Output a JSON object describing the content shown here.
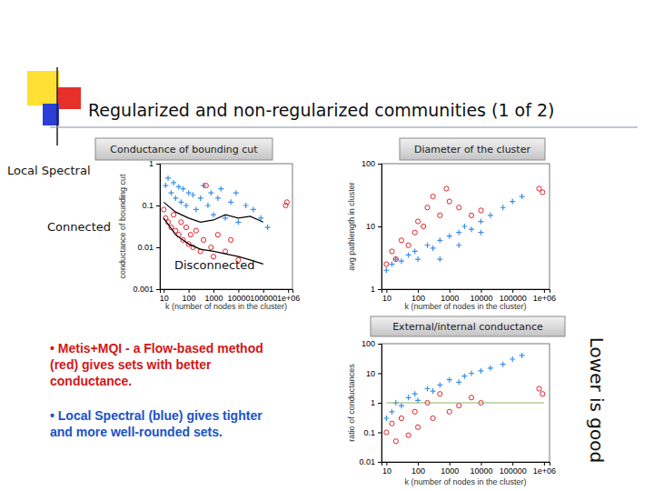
{
  "slide": {
    "title": "Regularized and non-regularized communities (1 of 2)",
    "bullets": [
      {
        "lines": [
          "• Metis+MQI - a Flow-based method",
          "(red) gives sets with better",
          "conductance."
        ],
        "color": "#d01818"
      },
      {
        "lines": [
          "• Local Spectral (blue) gives tighter",
          "and more well-rounded sets."
        ],
        "color": "#1a52c8"
      }
    ],
    "note": "Lower is good"
  },
  "chart_data": [
    {
      "type": "scatter",
      "title": "Conductance of bounding cut",
      "log": true,
      "x_label": "k (number of nodes in the cluster)",
      "y_label": "conductance of bounding cut",
      "xlim": [
        7,
        1500000
      ],
      "ylim": [
        0.001,
        1
      ],
      "xticks": [
        10,
        100,
        1000,
        10000,
        100000,
        {
          "value": 1000000,
          "label": "1e+06"
        }
      ],
      "yticks": [
        0.001,
        0.01,
        0.1,
        1
      ],
      "annotations": [
        "Local Spectral",
        "Connected",
        "Disconnected"
      ],
      "series": [
        {
          "type": "scatter",
          "color": "#3b8fe6",
          "marker": "plus",
          "x": [
            12,
            15,
            20,
            25,
            30,
            40,
            50,
            60,
            80,
            100,
            150,
            200,
            300,
            400,
            600,
            800,
            1000,
            1500,
            2000,
            3000,
            5000,
            8000,
            10000,
            20000,
            40000,
            80000,
            150000
          ],
          "values": [
            0.3,
            0.45,
            0.2,
            0.35,
            0.15,
            0.28,
            0.12,
            0.25,
            0.1,
            0.2,
            0.18,
            0.08,
            0.15,
            0.3,
            0.1,
            0.2,
            0.06,
            0.15,
            0.25,
            0.05,
            0.12,
            0.2,
            0.04,
            0.1,
            0.08,
            0.05,
            0.03
          ]
        },
        {
          "type": "scatter",
          "color": "#e8202a",
          "marker": "circle",
          "x": [
            10,
            12,
            15,
            20,
            25,
            30,
            40,
            50,
            60,
            80,
            100,
            120,
            150,
            200,
            300,
            400,
            500,
            800,
            1000,
            1500,
            3000,
            5000,
            10000,
            800000,
            900000
          ],
          "values": [
            0.08,
            0.05,
            0.04,
            0.03,
            0.06,
            0.025,
            0.02,
            0.04,
            0.015,
            0.03,
            0.012,
            0.02,
            0.01,
            0.025,
            0.008,
            0.015,
            0.3,
            0.01,
            0.006,
            0.02,
            0.008,
            0.015,
            0.005,
            0.1,
            0.12
          ]
        },
        {
          "type": "line",
          "color": "#000000",
          "line_style": "solid",
          "x": [
            10,
            30,
            100,
            300,
            1000,
            3000,
            10000,
            30000,
            100000
          ],
          "values": [
            0.12,
            0.07,
            0.05,
            0.04,
            0.045,
            0.06,
            0.05,
            0.055,
            0.04
          ]
        },
        {
          "type": "line",
          "color": "#000000",
          "line_style": "solid",
          "x": [
            10,
            30,
            100,
            300,
            1000,
            3000,
            10000,
            30000,
            100000
          ],
          "values": [
            0.05,
            0.02,
            0.012,
            0.009,
            0.008,
            0.007,
            0.006,
            0.005,
            0.004
          ]
        }
      ]
    },
    {
      "type": "scatter",
      "title": "Diameter of the cluster",
      "log": true,
      "x_label": "k (number of nodes in the cluster)",
      "y_label": "avg pathlength in cluster",
      "xlim": [
        7,
        1500000
      ],
      "ylim": [
        1,
        100
      ],
      "xticks": [
        10,
        100,
        1000,
        10000,
        100000,
        {
          "value": 1000000,
          "label": "1e+06"
        }
      ],
      "yticks": [
        1,
        10,
        100
      ],
      "series": [
        {
          "type": "scatter",
          "color": "#3b8fe6",
          "marker": "plus",
          "x": [
            10,
            15,
            20,
            30,
            50,
            80,
            100,
            200,
            300,
            500,
            1000,
            2000,
            3000,
            5000,
            10000,
            20000,
            50000,
            100000,
            200000,
            500,
            2000,
            10000
          ],
          "values": [
            2,
            2.5,
            3,
            2.8,
            3.5,
            4,
            3,
            5,
            4.5,
            6,
            7,
            8,
            10,
            9,
            12,
            15,
            20,
            25,
            30,
            3,
            5,
            8
          ]
        },
        {
          "type": "scatter",
          "color": "#e8202a",
          "marker": "circle",
          "x": [
            10,
            15,
            20,
            30,
            50,
            80,
            100,
            150,
            200,
            300,
            500,
            800,
            1000,
            2000,
            5000,
            10000,
            700000,
            900000
          ],
          "values": [
            2.5,
            4,
            3,
            6,
            5,
            8,
            12,
            10,
            20,
            30,
            15,
            40,
            25,
            20,
            15,
            18,
            40,
            35
          ]
        }
      ]
    },
    {
      "type": "scatter",
      "title": "External/internal conductance",
      "log": true,
      "x_label": "k (number of nodes in the cluster)",
      "y_label": "ratio of conductances",
      "xlim": [
        7,
        1500000
      ],
      "ylim": [
        0.01,
        100
      ],
      "xticks": [
        10,
        100,
        1000,
        10000,
        100000,
        {
          "value": 1000000,
          "label": "1e+06"
        }
      ],
      "yticks": [
        0.01,
        0.1,
        1,
        10,
        100
      ],
      "series": [
        {
          "type": "scatter",
          "color": "#3b8fe6",
          "marker": "plus",
          "x": [
            10,
            15,
            20,
            30,
            50,
            80,
            100,
            200,
            300,
            500,
            1000,
            2000,
            3000,
            5000,
            10000,
            20000,
            50000,
            100000,
            200000
          ],
          "values": [
            0.3,
            0.5,
            1,
            0.8,
            1.5,
            2,
            1.2,
            3,
            2.5,
            4,
            6,
            5,
            8,
            10,
            12,
            15,
            20,
            30,
            40
          ]
        },
        {
          "type": "scatter",
          "color": "#e8202a",
          "marker": "circle",
          "x": [
            10,
            15,
            20,
            30,
            50,
            80,
            100,
            200,
            300,
            500,
            1000,
            2000,
            5000,
            10000,
            700000,
            900000
          ],
          "values": [
            0.1,
            0.2,
            0.05,
            0.3,
            0.08,
            0.5,
            0.15,
            1,
            0.3,
            2,
            0.5,
            0.8,
            1.5,
            1,
            3,
            2
          ]
        },
        {
          "type": "line",
          "color": "#8fb26a",
          "line_style": "solid",
          "x": [
            10,
            1000000
          ],
          "values": [
            1,
            1
          ]
        }
      ]
    }
  ]
}
